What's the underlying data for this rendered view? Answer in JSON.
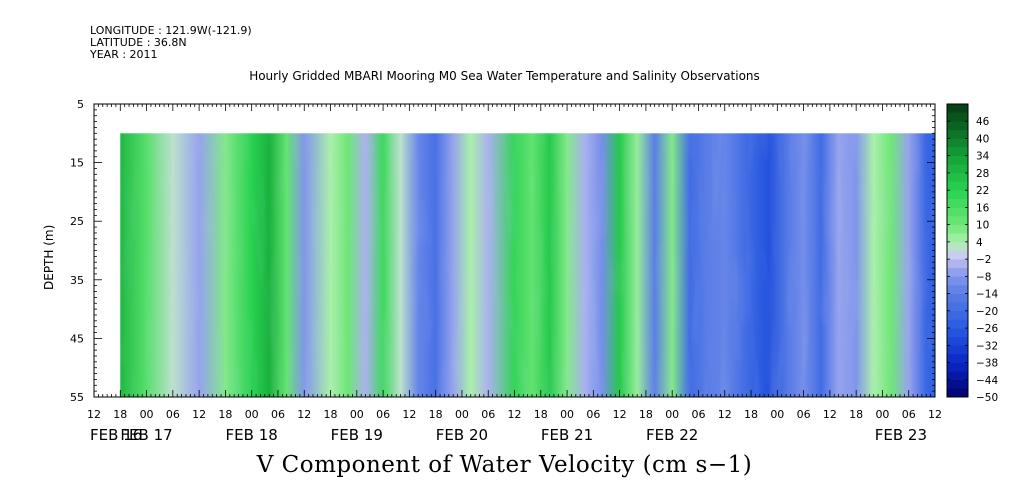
{
  "header": {
    "longitude": "LONGITUDE : 121.9W(-121.9)",
    "latitude": "LATITUDE : 36.8N",
    "year": "YEAR : 2011"
  },
  "chart_data": {
    "type": "heatmap",
    "title": "Hourly Gridded MBARI Mooring M0 Sea Water Temperature and Salinity Observations",
    "xlabel": "V Component of Water Velocity (cm s−1)",
    "ylabel": "DEPTH (m)",
    "y_ticks": [
      5,
      15,
      25,
      35,
      45,
      55
    ],
    "ylim": [
      5,
      55
    ],
    "y_reversed": true,
    "data_depth_range": [
      10,
      55
    ],
    "x_hour_labels": [
      "12",
      "18",
      "00",
      "06",
      "12",
      "18",
      "00",
      "06",
      "12",
      "18",
      "00",
      "06",
      "12",
      "18",
      "00",
      "06",
      "12",
      "18",
      "00",
      "06",
      "12",
      "18",
      "00",
      "06",
      "12",
      "18",
      "00",
      "06",
      "12",
      "18",
      "00",
      "06",
      "12"
    ],
    "x_date_labels": [
      "FEB 16",
      "FEB 17",
      "FEB 18",
      "FEB 19",
      "FEB 20",
      "FEB 21",
      "FEB 22",
      "FEB 23"
    ],
    "x_range_hours": [
      0,
      192
    ],
    "data_start_hour": 6,
    "colorbar_labels": [
      46,
      40,
      34,
      28,
      22,
      16,
      10,
      4,
      -2,
      -8,
      -14,
      -20,
      -26,
      -32,
      -38,
      -44,
      -50
    ],
    "colorbar_range": [
      -50,
      52
    ],
    "colors": {
      "strong_positive": "#0a4d1a",
      "positive": "#33d659",
      "zero": "#c8c8ee",
      "negative": "#5a7ee0",
      "strong_negative": "#000080"
    },
    "column_profile": [
      {
        "hour": 6,
        "v": 28
      },
      {
        "hour": 12,
        "v": 14
      },
      {
        "hour": 18,
        "v": 2
      },
      {
        "hour": 24,
        "v": -6
      },
      {
        "hour": 30,
        "v": 8
      },
      {
        "hour": 36,
        "v": 22
      },
      {
        "hour": 40,
        "v": 30
      },
      {
        "hour": 44,
        "v": 12
      },
      {
        "hour": 48,
        "v": -8
      },
      {
        "hour": 54,
        "v": 4
      },
      {
        "hour": 58,
        "v": 10
      },
      {
        "hour": 62,
        "v": -4
      },
      {
        "hour": 66,
        "v": 18
      },
      {
        "hour": 70,
        "v": 2
      },
      {
        "hour": 74,
        "v": -12
      },
      {
        "hour": 78,
        "v": -18
      },
      {
        "hour": 82,
        "v": -6
      },
      {
        "hour": 86,
        "v": 4
      },
      {
        "hour": 90,
        "v": -4
      },
      {
        "hour": 96,
        "v": 20
      },
      {
        "hour": 100,
        "v": 12
      },
      {
        "hour": 104,
        "v": 24
      },
      {
        "hour": 108,
        "v": 8
      },
      {
        "hour": 112,
        "v": -4
      },
      {
        "hour": 116,
        "v": -10
      },
      {
        "hour": 120,
        "v": 24
      },
      {
        "hour": 124,
        "v": 6
      },
      {
        "hour": 128,
        "v": -14
      },
      {
        "hour": 132,
        "v": 8
      },
      {
        "hour": 136,
        "v": -20
      },
      {
        "hour": 140,
        "v": -14
      },
      {
        "hour": 144,
        "v": -12
      },
      {
        "hour": 150,
        "v": -22
      },
      {
        "hour": 154,
        "v": -28
      },
      {
        "hour": 158,
        "v": -16
      },
      {
        "hour": 162,
        "v": -10
      },
      {
        "hour": 166,
        "v": -20
      },
      {
        "hour": 170,
        "v": -6
      },
      {
        "hour": 174,
        "v": -8
      },
      {
        "hour": 178,
        "v": 4
      },
      {
        "hour": 182,
        "v": 10
      },
      {
        "hour": 186,
        "v": -6
      },
      {
        "hour": 190,
        "v": -22
      },
      {
        "hour": 192,
        "v": -24
      }
    ]
  }
}
